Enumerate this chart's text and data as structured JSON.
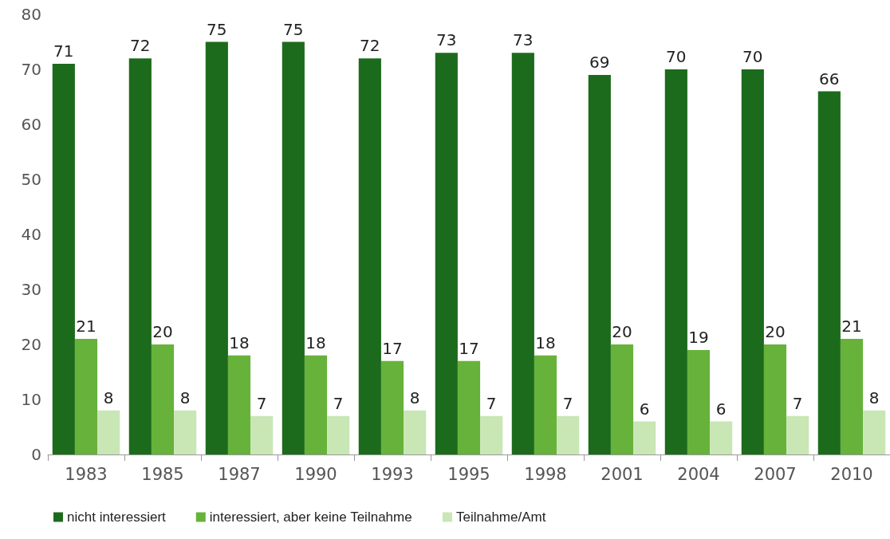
{
  "chart_data": {
    "type": "bar",
    "categories": [
      "1983",
      "1985",
      "1987",
      "1990",
      "1993",
      "1995",
      "1998",
      "2001",
      "2004",
      "2007",
      "2010"
    ],
    "series": [
      {
        "name": "nicht interessiert",
        "color": "#1c6b1c",
        "values": [
          71,
          72,
          75,
          75,
          72,
          73,
          73,
          69,
          70,
          70,
          66
        ]
      },
      {
        "name": "interessiert, aber keine Teilnahme",
        "color": "#67b23a",
        "values": [
          21,
          20,
          18,
          18,
          17,
          17,
          18,
          20,
          19,
          20,
          21
        ]
      },
      {
        "name": "Teilnahme/Amt",
        "color": "#c9e6b5",
        "values": [
          8,
          8,
          7,
          7,
          8,
          7,
          7,
          6,
          6,
          7,
          8
        ]
      }
    ],
    "ylim": [
      0,
      80
    ],
    "yticks": [
      0,
      10,
      20,
      30,
      40,
      50,
      60,
      70,
      80
    ],
    "grid": false,
    "legend": "bottom left",
    "data_labels": true
  }
}
